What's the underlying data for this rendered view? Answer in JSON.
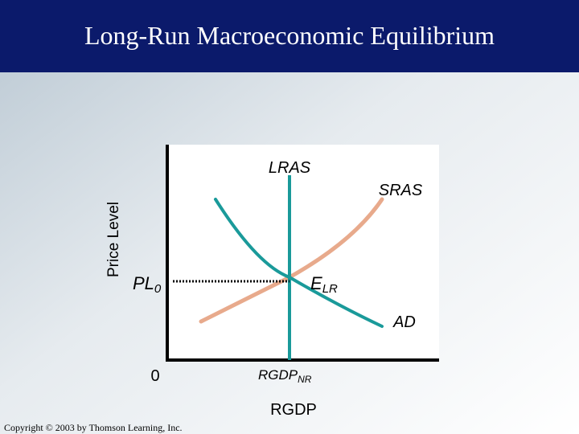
{
  "header": {
    "title": "Long-Run Macroeconomic Equilibrium"
  },
  "diagram": {
    "y_axis_label": "Price Level",
    "x_axis_label": "RGDP",
    "lras_label": "LRAS",
    "sras_label": "SRAS",
    "ad_label": "AD",
    "price_label": {
      "main": "PL",
      "sub": "0"
    },
    "equilibrium_label": {
      "main": "E",
      "sub": "LR"
    },
    "origin_label": "0",
    "output_label": {
      "main": "RGDP",
      "sub": "NR"
    }
  },
  "footer": {
    "copyright": "Copyright © 2003 by Thomson Learning, Inc."
  }
}
